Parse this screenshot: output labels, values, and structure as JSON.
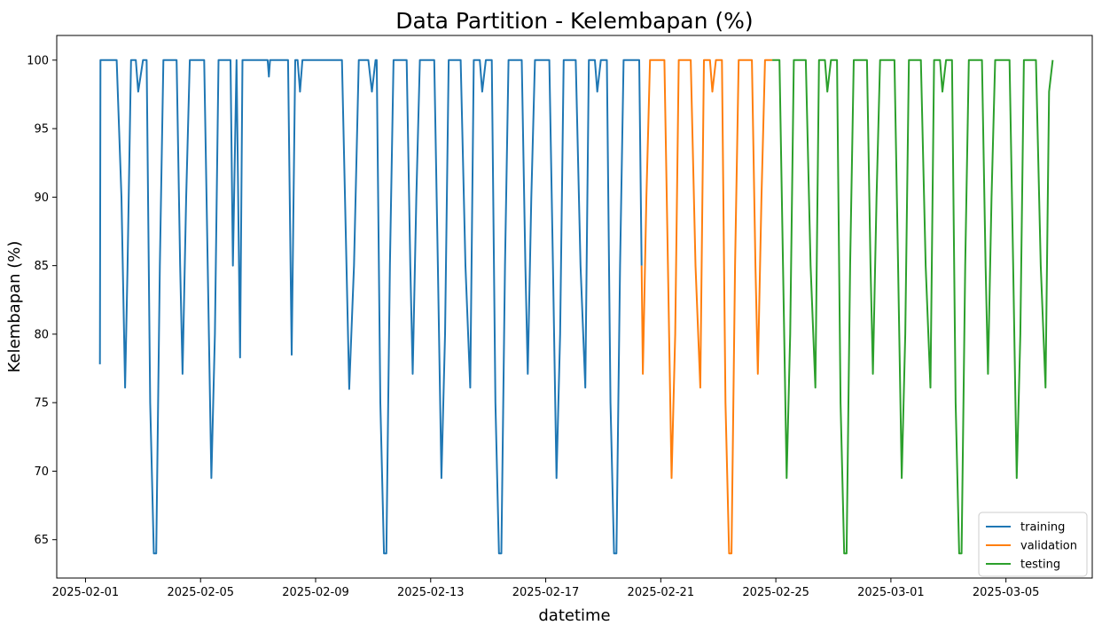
{
  "chart_data": {
    "type": "line",
    "title": "Data Partition - Kelembapan (%)",
    "xlabel": "datetime",
    "ylabel": "Kelembapan (%)",
    "xlim": [
      "2025-01-31",
      "2025-03-08"
    ],
    "ylim": [
      62.2,
      101.8
    ],
    "x_ticks": [
      "2025-02-01",
      "2025-02-05",
      "2025-02-09",
      "2025-02-13",
      "2025-02-17",
      "2025-02-21",
      "2025-02-25",
      "2025-03-01",
      "2025-03-05"
    ],
    "y_ticks": [
      65,
      70,
      75,
      80,
      85,
      90,
      95,
      100
    ],
    "grid": false,
    "legend_position": "lower-right",
    "series": [
      {
        "name": "training",
        "color": "#1f77b4",
        "points": [
          [
            "2025-02-01 12:00",
            77.8
          ],
          [
            "2025-02-01 12:30",
            100
          ],
          [
            "2025-02-02 02:00",
            100
          ],
          [
            "2025-02-02 06:00",
            90
          ],
          [
            "2025-02-02 09:00",
            76.1
          ],
          [
            "2025-02-02 11:00",
            84.7
          ],
          [
            "2025-02-02 14:00",
            100
          ],
          [
            "2025-02-02 18:00",
            100
          ],
          [
            "2025-02-02 20:00",
            97.7
          ],
          [
            "2025-02-03 00:00",
            100
          ],
          [
            "2025-02-03 03:00",
            100
          ],
          [
            "2025-02-03 06:00",
            75
          ],
          [
            "2025-02-03 09:00",
            64
          ],
          [
            "2025-02-03 11:00",
            64
          ],
          [
            "2025-02-03 14:00",
            85
          ],
          [
            "2025-02-03 17:00",
            100
          ],
          [
            "2025-02-04 04:00",
            100
          ],
          [
            "2025-02-04 07:00",
            85
          ],
          [
            "2025-02-04 09:00",
            77.1
          ],
          [
            "2025-02-04 12:00",
            90
          ],
          [
            "2025-02-04 15:00",
            100
          ],
          [
            "2025-02-05 03:00",
            100
          ],
          [
            "2025-02-05 06:00",
            85
          ],
          [
            "2025-02-05 09:00",
            69.5
          ],
          [
            "2025-02-05 12:00",
            80
          ],
          [
            "2025-02-05 15:00",
            100
          ],
          [
            "2025-02-06 01:00",
            100
          ],
          [
            "2025-02-06 03:00",
            85
          ],
          [
            "2025-02-06 06:00",
            100
          ],
          [
            "2025-02-06 09:00",
            78.3
          ],
          [
            "2025-02-06 11:00",
            100
          ],
          [
            "2025-02-07 08:00",
            100
          ],
          [
            "2025-02-07 09:00",
            98.8
          ],
          [
            "2025-02-07 10:00",
            100
          ],
          [
            "2025-02-08 01:00",
            100
          ],
          [
            "2025-02-08 04:00",
            78.5
          ],
          [
            "2025-02-08 07:00",
            100
          ],
          [
            "2025-02-08 09:00",
            100
          ],
          [
            "2025-02-08 11:00",
            97.7
          ],
          [
            "2025-02-08 13:00",
            100
          ],
          [
            "2025-02-09 22:00",
            100
          ],
          [
            "2025-02-10 04:00",
            76
          ],
          [
            "2025-02-10 08:00",
            85
          ],
          [
            "2025-02-10 12:00",
            100
          ],
          [
            "2025-02-10 20:00",
            100
          ],
          [
            "2025-02-10 23:00",
            97.7
          ],
          [
            "2025-02-11 02:00",
            100
          ],
          [
            "2025-02-11 03:00",
            100
          ],
          [
            "2025-02-11 06:00",
            75
          ],
          [
            "2025-02-11 09:00",
            64
          ],
          [
            "2025-02-11 11:00",
            64
          ],
          [
            "2025-02-11 14:00",
            85
          ],
          [
            "2025-02-11 17:00",
            100
          ],
          [
            "2025-02-12 04:00",
            100
          ],
          [
            "2025-02-12 07:00",
            85
          ],
          [
            "2025-02-12 09:00",
            77.1
          ],
          [
            "2025-02-12 12:00",
            90
          ],
          [
            "2025-02-12 15:00",
            100
          ],
          [
            "2025-02-13 03:00",
            100
          ],
          [
            "2025-02-13 06:00",
            85
          ],
          [
            "2025-02-13 09:00",
            69.5
          ],
          [
            "2025-02-13 12:00",
            80
          ],
          [
            "2025-02-13 15:00",
            100
          ],
          [
            "2025-02-14 01:00",
            100
          ],
          [
            "2025-02-14 05:00",
            85
          ],
          [
            "2025-02-14 09:00",
            76.1
          ],
          [
            "2025-02-14 12:00",
            100
          ],
          [
            "2025-02-14 17:00",
            100
          ],
          [
            "2025-02-14 19:00",
            97.7
          ],
          [
            "2025-02-14 22:00",
            100
          ],
          [
            "2025-02-15 03:00",
            100
          ],
          [
            "2025-02-15 06:00",
            75
          ],
          [
            "2025-02-15 09:00",
            64
          ],
          [
            "2025-02-15 11:00",
            64
          ],
          [
            "2025-02-15 14:00",
            85
          ],
          [
            "2025-02-15 17:00",
            100
          ],
          [
            "2025-02-16 04:00",
            100
          ],
          [
            "2025-02-16 07:00",
            85
          ],
          [
            "2025-02-16 09:00",
            77.1
          ],
          [
            "2025-02-16 12:00",
            90
          ],
          [
            "2025-02-16 15:00",
            100
          ],
          [
            "2025-02-17 03:00",
            100
          ],
          [
            "2025-02-17 06:00",
            85
          ],
          [
            "2025-02-17 09:00",
            69.5
          ],
          [
            "2025-02-17 12:00",
            80
          ],
          [
            "2025-02-17 15:00",
            100
          ],
          [
            "2025-02-18 01:00",
            100
          ],
          [
            "2025-02-18 05:00",
            85
          ],
          [
            "2025-02-18 09:00",
            76.1
          ],
          [
            "2025-02-18 12:00",
            100
          ],
          [
            "2025-02-18 17:00",
            100
          ],
          [
            "2025-02-18 19:00",
            97.7
          ],
          [
            "2025-02-18 22:00",
            100
          ],
          [
            "2025-02-19 03:00",
            100
          ],
          [
            "2025-02-19 06:00",
            75
          ],
          [
            "2025-02-19 09:00",
            64
          ],
          [
            "2025-02-19 11:00",
            64
          ],
          [
            "2025-02-19 14:00",
            85
          ],
          [
            "2025-02-19 17:00",
            100
          ],
          [
            "2025-02-20 06:00",
            100
          ],
          [
            "2025-02-20 08:00",
            85
          ]
        ]
      },
      {
        "name": "validation",
        "color": "#ff7f0e",
        "points": [
          [
            "2025-02-20 08:00",
            85
          ],
          [
            "2025-02-20 09:00",
            77.1
          ],
          [
            "2025-02-20 12:00",
            90
          ],
          [
            "2025-02-20 15:00",
            100
          ],
          [
            "2025-02-21 03:00",
            100
          ],
          [
            "2025-02-21 06:00",
            85
          ],
          [
            "2025-02-21 09:00",
            69.5
          ],
          [
            "2025-02-21 12:00",
            80
          ],
          [
            "2025-02-21 15:00",
            100
          ],
          [
            "2025-02-22 01:00",
            100
          ],
          [
            "2025-02-22 05:00",
            85
          ],
          [
            "2025-02-22 09:00",
            76.1
          ],
          [
            "2025-02-22 12:00",
            100
          ],
          [
            "2025-02-22 17:00",
            100
          ],
          [
            "2025-02-22 19:00",
            97.7
          ],
          [
            "2025-02-22 22:00",
            100
          ],
          [
            "2025-02-23 03:00",
            100
          ],
          [
            "2025-02-23 06:00",
            75
          ],
          [
            "2025-02-23 09:00",
            64
          ],
          [
            "2025-02-23 11:00",
            64
          ],
          [
            "2025-02-23 14:00",
            85
          ],
          [
            "2025-02-23 17:00",
            100
          ],
          [
            "2025-02-24 04:00",
            100
          ],
          [
            "2025-02-24 07:00",
            85
          ],
          [
            "2025-02-24 09:00",
            77.1
          ],
          [
            "2025-02-24 12:00",
            90
          ],
          [
            "2025-02-24 15:00",
            100
          ],
          [
            "2025-02-24 21:00",
            100
          ]
        ]
      },
      {
        "name": "testing",
        "color": "#2ca02c",
        "points": [
          [
            "2025-02-24 21:00",
            100
          ],
          [
            "2025-02-25 03:00",
            100
          ],
          [
            "2025-02-25 06:00",
            85
          ],
          [
            "2025-02-25 09:00",
            69.5
          ],
          [
            "2025-02-25 12:00",
            80
          ],
          [
            "2025-02-25 15:00",
            100
          ],
          [
            "2025-02-26 01:00",
            100
          ],
          [
            "2025-02-26 05:00",
            85
          ],
          [
            "2025-02-26 09:00",
            76.1
          ],
          [
            "2025-02-26 12:00",
            100
          ],
          [
            "2025-02-26 17:00",
            100
          ],
          [
            "2025-02-26 19:00",
            97.7
          ],
          [
            "2025-02-26 22:00",
            100
          ],
          [
            "2025-02-27 03:00",
            100
          ],
          [
            "2025-02-27 06:00",
            75
          ],
          [
            "2025-02-27 09:00",
            64
          ],
          [
            "2025-02-27 11:00",
            64
          ],
          [
            "2025-02-27 14:00",
            85
          ],
          [
            "2025-02-27 17:00",
            100
          ],
          [
            "2025-02-28 04:00",
            100
          ],
          [
            "2025-02-28 07:00",
            85
          ],
          [
            "2025-02-28 09:00",
            77.1
          ],
          [
            "2025-02-28 12:00",
            90
          ],
          [
            "2025-02-28 15:00",
            100
          ],
          [
            "2025-03-01 03:00",
            100
          ],
          [
            "2025-03-01 06:00",
            85
          ],
          [
            "2025-03-01 09:00",
            69.5
          ],
          [
            "2025-03-01 12:00",
            80
          ],
          [
            "2025-03-01 15:00",
            100
          ],
          [
            "2025-03-02 01:00",
            100
          ],
          [
            "2025-03-02 05:00",
            85
          ],
          [
            "2025-03-02 09:00",
            76.1
          ],
          [
            "2025-03-02 12:00",
            100
          ],
          [
            "2025-03-02 17:00",
            100
          ],
          [
            "2025-03-02 19:00",
            97.7
          ],
          [
            "2025-03-02 22:00",
            100
          ],
          [
            "2025-03-03 03:00",
            100
          ],
          [
            "2025-03-03 06:00",
            75
          ],
          [
            "2025-03-03 09:00",
            64
          ],
          [
            "2025-03-03 11:00",
            64
          ],
          [
            "2025-03-03 14:00",
            85
          ],
          [
            "2025-03-03 17:00",
            100
          ],
          [
            "2025-03-04 04:00",
            100
          ],
          [
            "2025-03-04 07:00",
            85
          ],
          [
            "2025-03-04 09:00",
            77.1
          ],
          [
            "2025-03-04 12:00",
            90
          ],
          [
            "2025-03-04 15:00",
            100
          ],
          [
            "2025-03-05 03:00",
            100
          ],
          [
            "2025-03-05 06:00",
            85
          ],
          [
            "2025-03-05 09:00",
            69.5
          ],
          [
            "2025-03-05 12:00",
            80
          ],
          [
            "2025-03-05 15:00",
            100
          ],
          [
            "2025-03-06 01:00",
            100
          ],
          [
            "2025-03-06 05:00",
            85
          ],
          [
            "2025-03-06 09:00",
            76.1
          ],
          [
            "2025-03-06 12:00",
            97.7
          ],
          [
            "2025-03-06 15:00",
            100
          ]
        ]
      }
    ]
  }
}
